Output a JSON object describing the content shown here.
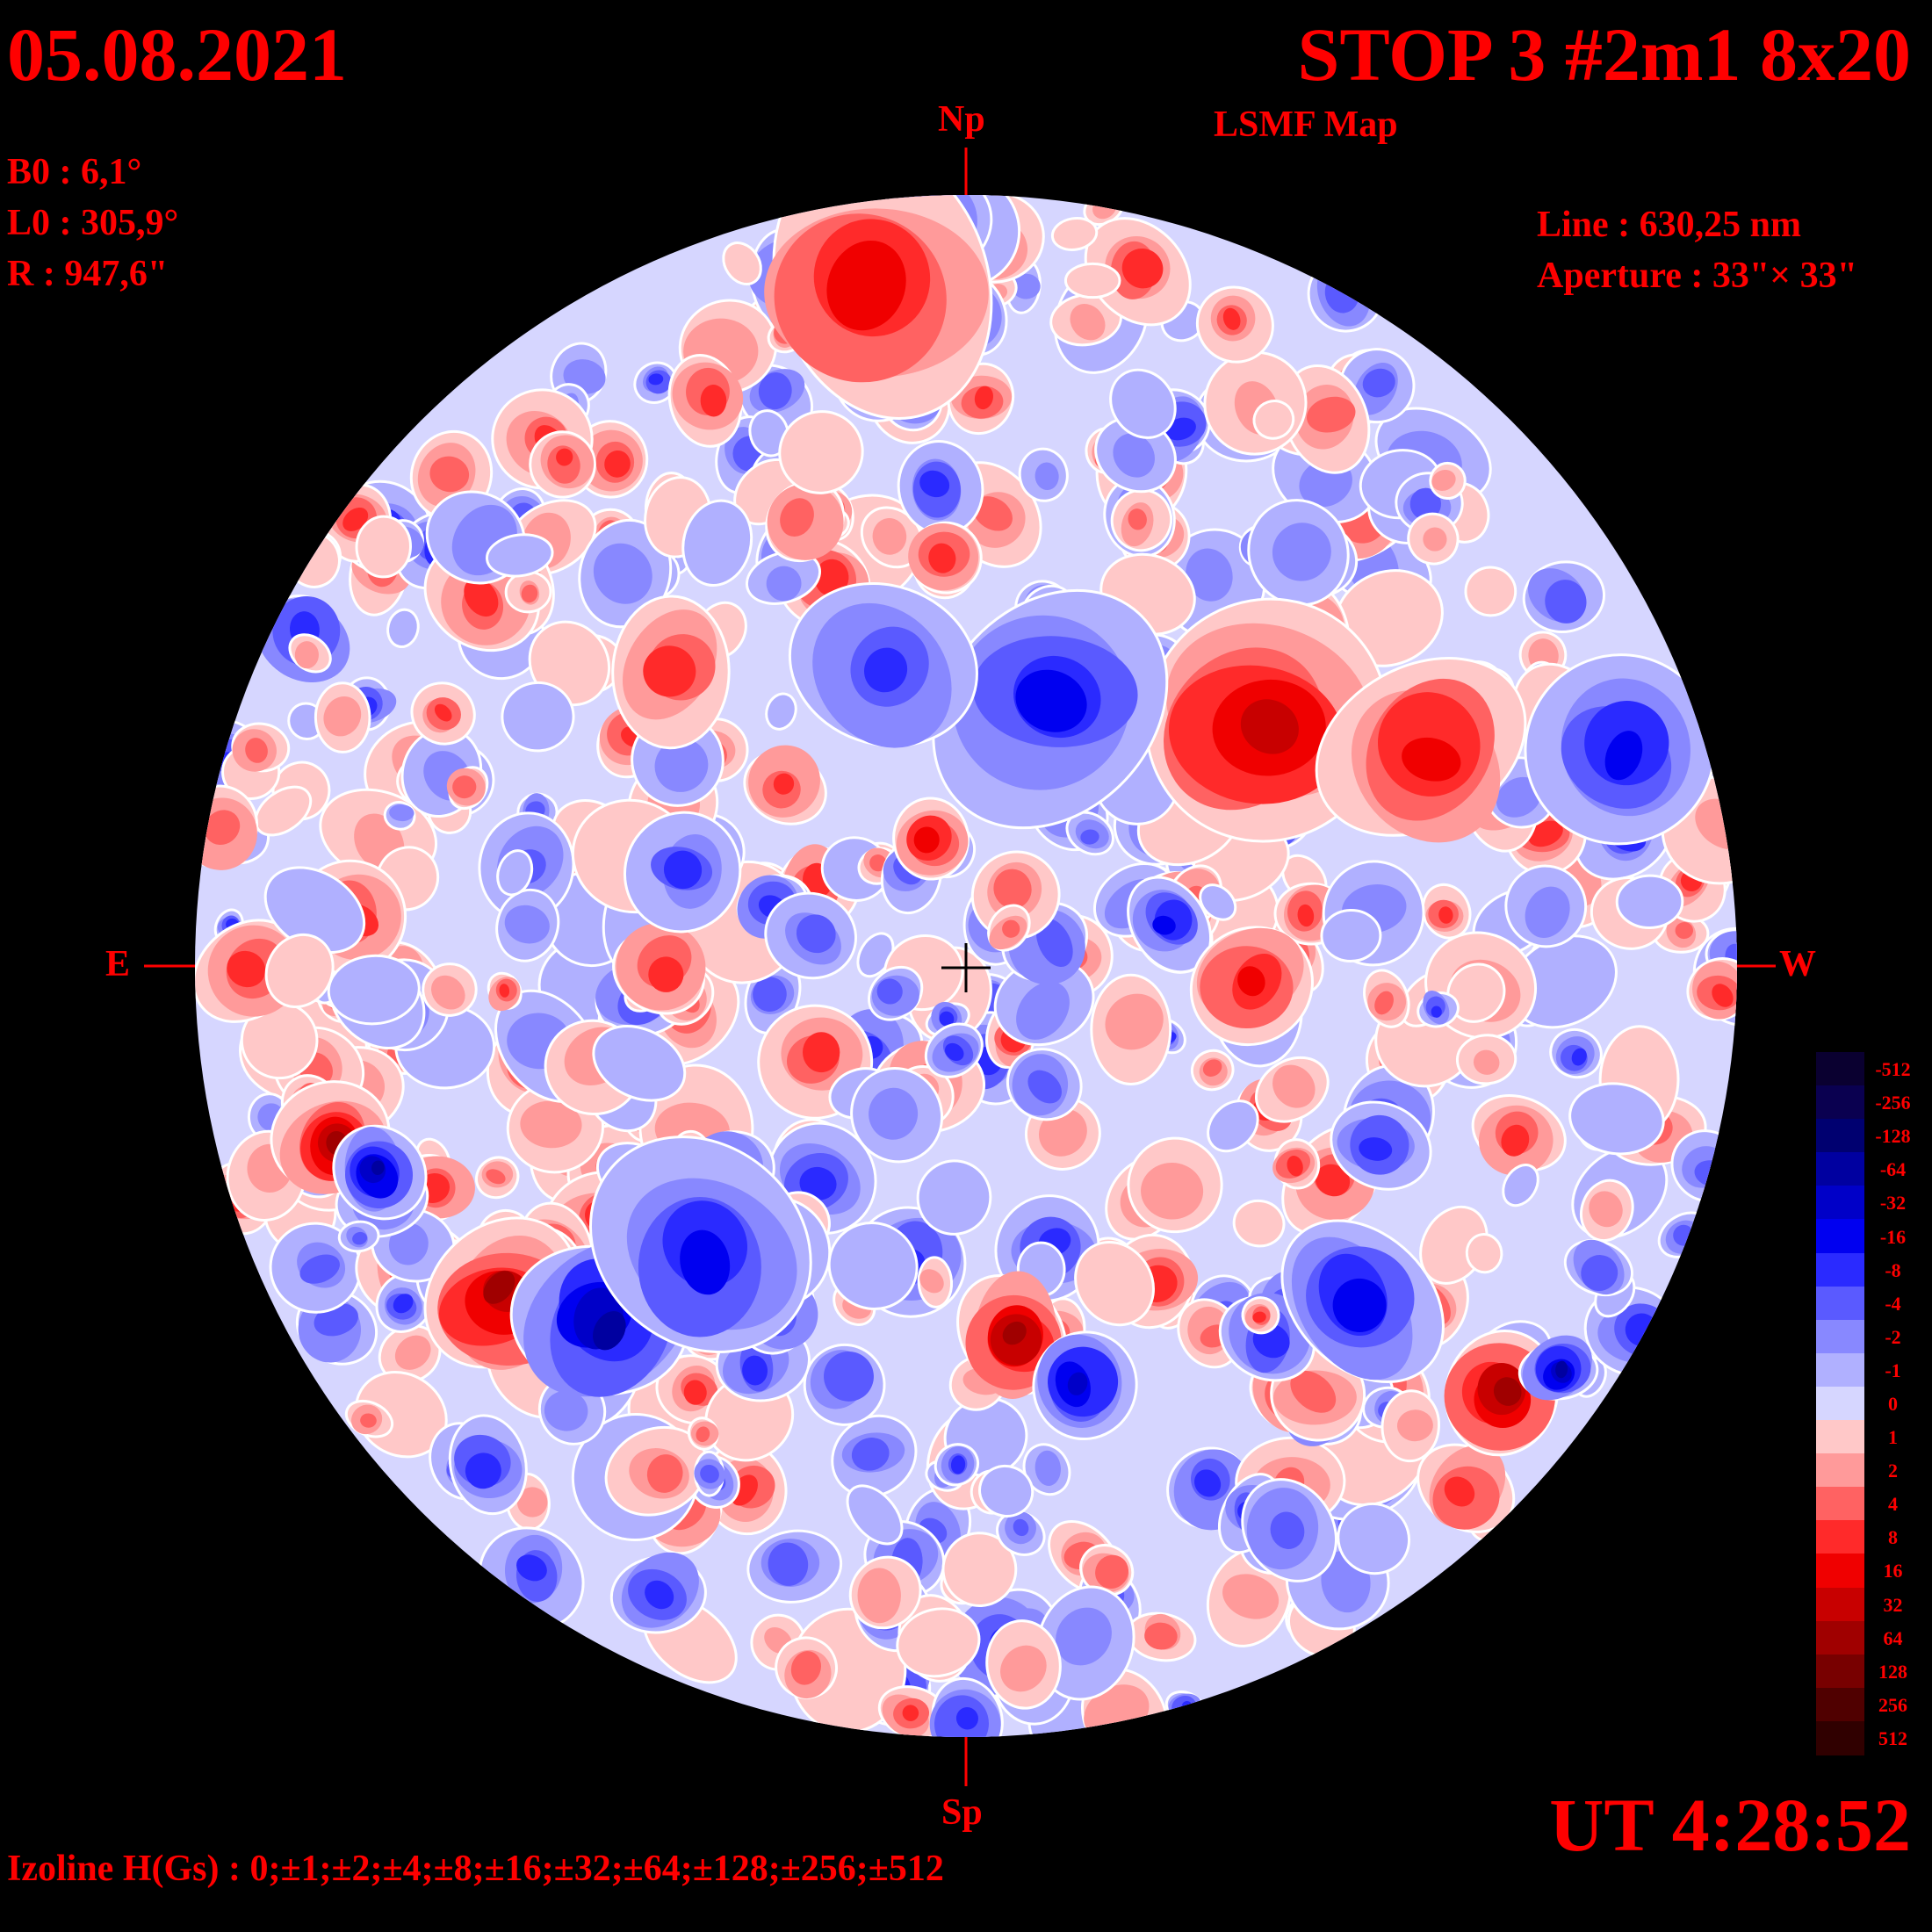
{
  "header": {
    "date": "05.08.2021",
    "title": "STOP 3 #2m1 8x20",
    "subtitle": "LSMF  Map"
  },
  "params_left": [
    {
      "label": "B0 : 6,1°"
    },
    {
      "label": "L0 : 305,9°"
    },
    {
      "label": "R  : 947,6\""
    }
  ],
  "params_right": [
    {
      "label": "Line :  630,25 nm"
    },
    {
      "label": "Aperture : 33\"× 33\""
    }
  ],
  "directions": {
    "north": "Np",
    "south": "Sp",
    "east": "E",
    "west": "W"
  },
  "time": "UT 4:28:52",
  "izoline": "Izoline H(Gs) : 0;±1;±2;±4;±8;±16;±32;±64;±128;±256;±512",
  "colorbar": {
    "levels": [
      {
        "label": "-512",
        "color": "#0a0030"
      },
      {
        "label": "-256",
        "color": "#0a0050"
      },
      {
        "label": "-128",
        "color": "#000070"
      },
      {
        "label": "-64",
        "color": "#0000a0"
      },
      {
        "label": "-32",
        "color": "#0000c8"
      },
      {
        "label": "-16",
        "color": "#0000f0"
      },
      {
        "label": "-8",
        "color": "#2a2aff"
      },
      {
        "label": "-4",
        "color": "#5a5aff"
      },
      {
        "label": "-2",
        "color": "#8888ff"
      },
      {
        "label": "-1",
        "color": "#b0b0ff"
      },
      {
        "label": "0",
        "color": "#d6d6ff"
      },
      {
        "label": "1",
        "color": "#ffc8c8"
      },
      {
        "label": "2",
        "color": "#ff9a9a"
      },
      {
        "label": "4",
        "color": "#ff6262"
      },
      {
        "label": "8",
        "color": "#ff2a2a"
      },
      {
        "label": "16",
        "color": "#f00000"
      },
      {
        "label": "32",
        "color": "#c80000"
      },
      {
        "label": "64",
        "color": "#a00000"
      },
      {
        "label": "128",
        "color": "#780000"
      },
      {
        "label": "256",
        "color": "#500000"
      },
      {
        "label": "512",
        "color": "#300000"
      }
    ]
  },
  "palette": {
    "text": "#ff0000",
    "background": "#000000",
    "disk_base": "#d6d6ff"
  }
}
